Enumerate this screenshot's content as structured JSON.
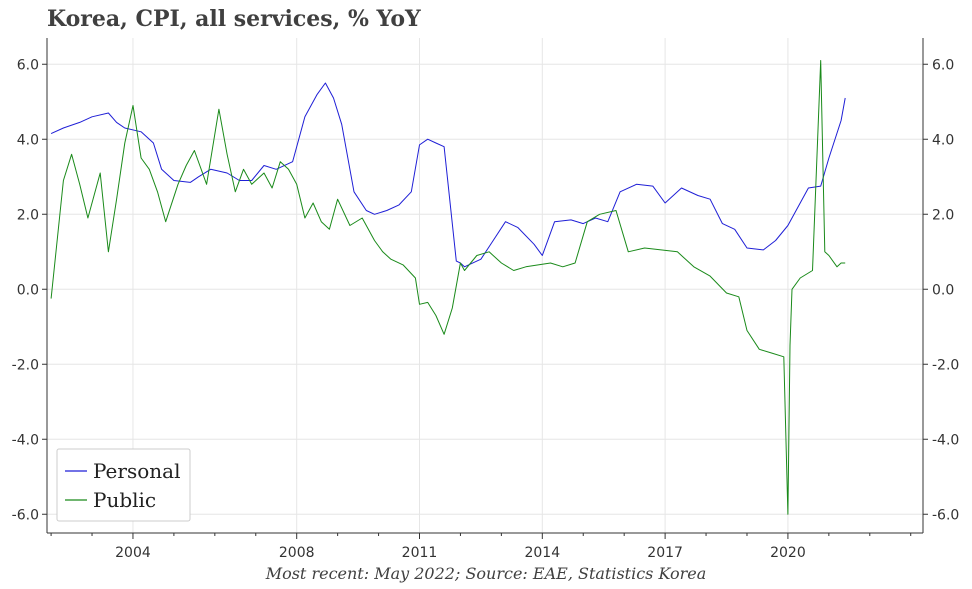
{
  "title": "Korea, CPI, all services, % YoY",
  "caption": "Most recent: May 2022; Source: EAE, Statistics Korea",
  "chart_data": {
    "type": "line",
    "title": "Korea, CPI, all services, % YoY",
    "xlabel": "",
    "ylabel": "",
    "xlim": [
      2001.9,
      2023.3
    ],
    "ylim": [
      -6.5,
      6.7
    ],
    "x_ticks": [
      2004,
      2008,
      2011,
      2014,
      2017,
      2020
    ],
    "x_tick_labels": [
      "2004",
      "2008",
      "2011",
      "2014",
      "2017",
      "2020"
    ],
    "y_ticks": [
      -6,
      -4,
      -2,
      0,
      2,
      4,
      6
    ],
    "y_tick_labels": [
      "-6.0",
      "-4.0",
      "-2.0",
      "0.0",
      "2.0",
      "4.0",
      "6.0"
    ],
    "grid": true,
    "legend_position": "bottom-left",
    "series": [
      {
        "name": "Personal",
        "color": "#1f1fd6",
        "x": [
          2002.0,
          2002.3,
          2002.7,
          2003.0,
          2003.4,
          2003.6,
          2003.8,
          2004.2,
          2004.5,
          2004.7,
          2005.0,
          2005.4,
          2005.6,
          2005.9,
          2006.3,
          2006.6,
          2006.9,
          2007.2,
          2007.5,
          2007.9,
          2008.2,
          2008.5,
          2008.7,
          2008.9,
          2009.1,
          2009.4,
          2009.7,
          2009.9,
          2010.2,
          2010.5,
          2010.8,
          2011.0,
          2011.2,
          2011.4,
          2011.6,
          2011.9,
          2012.0,
          2012.1,
          2012.5,
          2012.8,
          2013.1,
          2013.4,
          2013.8,
          2014.0,
          2014.3,
          2014.7,
          2015.0,
          2015.3,
          2015.6,
          2015.9,
          2016.3,
          2016.7,
          2017.0,
          2017.4,
          2017.8,
          2018.1,
          2018.4,
          2018.7,
          2019.0,
          2019.4,
          2019.7,
          2020.0,
          2020.3,
          2020.5,
          2020.8,
          2021.0,
          2021.3,
          2021.4
        ],
        "values": [
          4.15,
          4.3,
          4.45,
          4.6,
          4.7,
          4.45,
          4.3,
          4.2,
          3.9,
          3.2,
          2.9,
          2.85,
          3.0,
          3.2,
          3.1,
          2.9,
          2.9,
          3.3,
          3.2,
          3.4,
          4.6,
          5.2,
          5.5,
          5.1,
          4.4,
          2.6,
          2.1,
          2.0,
          2.1,
          2.25,
          2.6,
          3.85,
          4.0,
          3.9,
          3.8,
          0.75,
          0.7,
          0.6,
          0.8,
          1.3,
          1.8,
          1.65,
          1.2,
          0.9,
          1.8,
          1.85,
          1.75,
          1.9,
          1.8,
          2.6,
          2.8,
          2.75,
          2.3,
          2.7,
          2.5,
          2.4,
          1.75,
          1.6,
          1.1,
          1.05,
          1.3,
          1.7,
          2.3,
          2.7,
          2.75,
          3.5,
          4.5,
          5.1
        ]
      },
      {
        "name": "Public",
        "color": "#1a8a1a",
        "x": [
          2002.0,
          2002.3,
          2002.5,
          2002.7,
          2002.9,
          2003.2,
          2003.4,
          2003.6,
          2003.8,
          2004.0,
          2004.2,
          2004.4,
          2004.6,
          2004.8,
          2005.1,
          2005.3,
          2005.5,
          2005.8,
          2006.1,
          2006.3,
          2006.5,
          2006.7,
          2006.9,
          2007.2,
          2007.4,
          2007.6,
          2007.8,
          2008.0,
          2008.2,
          2008.4,
          2008.6,
          2008.8,
          2009.0,
          2009.3,
          2009.6,
          2009.9,
          2010.1,
          2010.3,
          2010.6,
          2010.9,
          2011.0,
          2011.2,
          2011.4,
          2011.6,
          2011.8,
          2012.0,
          2012.1,
          2012.4,
          2012.7,
          2013.0,
          2013.3,
          2013.6,
          2013.9,
          2014.2,
          2014.5,
          2014.8,
          2015.1,
          2015.4,
          2015.8,
          2016.1,
          2016.5,
          2016.9,
          2017.3,
          2017.7,
          2018.1,
          2018.5,
          2018.8,
          2019.0,
          2019.3,
          2019.6,
          2019.9,
          2020.0,
          2020.05,
          2020.1,
          2020.3,
          2020.6,
          2020.8,
          2020.9,
          2021.0,
          2021.2,
          2021.3,
          2021.4
        ],
        "values": [
          -0.25,
          2.9,
          3.6,
          2.8,
          1.9,
          3.1,
          1.0,
          2.4,
          3.9,
          4.9,
          3.5,
          3.2,
          2.6,
          1.8,
          2.8,
          3.3,
          3.7,
          2.8,
          4.8,
          3.6,
          2.6,
          3.2,
          2.8,
          3.1,
          2.7,
          3.4,
          3.2,
          2.8,
          1.9,
          2.3,
          1.8,
          1.6,
          2.4,
          1.7,
          1.9,
          1.3,
          1.0,
          0.8,
          0.65,
          0.3,
          -0.4,
          -0.35,
          -0.7,
          -1.2,
          -0.5,
          0.7,
          0.5,
          0.9,
          1.0,
          0.7,
          0.5,
          0.6,
          0.65,
          0.7,
          0.6,
          0.7,
          1.8,
          2.0,
          2.1,
          1.0,
          1.1,
          1.05,
          1.0,
          0.6,
          0.35,
          -0.1,
          -0.2,
          -1.1,
          -1.6,
          -1.7,
          -1.8,
          -6.0,
          -1.5,
          0.0,
          0.3,
          0.5,
          6.1,
          1.0,
          0.9,
          0.6,
          0.7,
          0.7
        ]
      }
    ]
  }
}
